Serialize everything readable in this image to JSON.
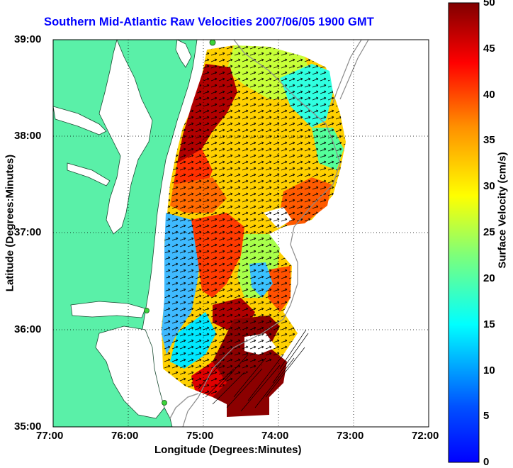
{
  "title": "Southern Mid-Atlantic Raw Velocities 2007/06/05 1900 GMT",
  "x_axis": {
    "label": "Longitude (Degrees:Minutes)",
    "ticks": [
      "77:00",
      "76:00",
      "75:00",
      "74:00",
      "73:00",
      "72:00"
    ]
  },
  "y_axis": {
    "label": "Latitude (Degrees:Minutes)",
    "ticks": [
      "39:00",
      "38:00",
      "37:00",
      "36:00",
      "35:00"
    ]
  },
  "colorbar": {
    "label": "Surface Velocity (cm/s)",
    "ticks": [
      "50",
      "45",
      "40",
      "35",
      "30",
      "25",
      "20",
      "15",
      "10",
      "5",
      "0"
    ],
    "range": [
      0,
      50
    ],
    "colormap": "jet"
  },
  "map": {
    "lon_range": [
      -77,
      -72
    ],
    "lat_range": [
      35,
      39
    ],
    "land_color": "#5af0a8",
    "grid": true,
    "shore_stations": "green dots along coast"
  },
  "chart_data": {
    "type": "heatmap",
    "title": "Southern Mid-Atlantic Raw Velocities 2007/06/05 1900 GMT",
    "xlabel": "Longitude (Degrees:Minutes)",
    "ylabel": "Latitude (Degrees:Minutes)",
    "xlim": [
      -77,
      -72
    ],
    "ylim": [
      35,
      39
    ],
    "colorbar_label": "Surface Velocity (cm/s)",
    "clim": [
      0,
      50
    ]
  }
}
